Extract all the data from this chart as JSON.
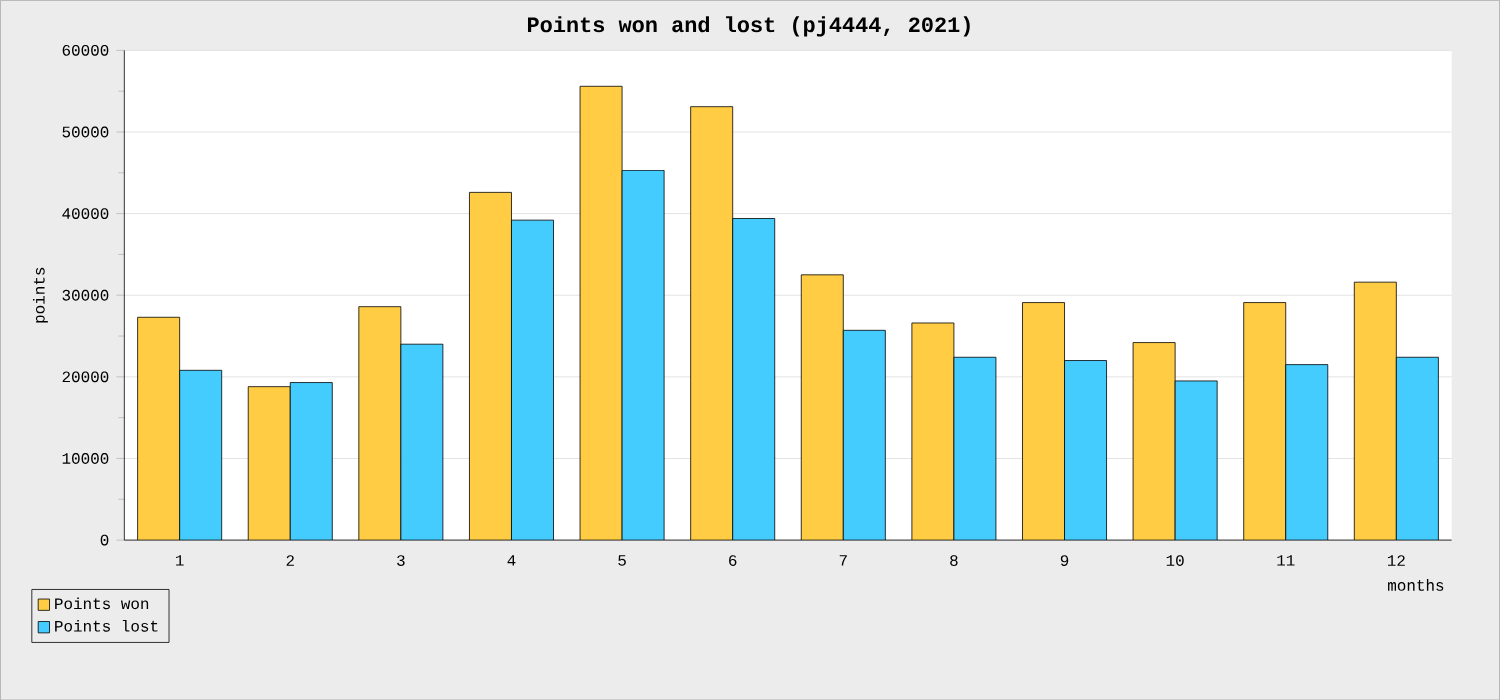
{
  "chart_data": {
    "type": "bar",
    "title": "Points won and lost (pj4444, 2021)",
    "xlabel": "months",
    "ylabel": "points",
    "categories": [
      "1",
      "2",
      "3",
      "4",
      "5",
      "6",
      "7",
      "8",
      "9",
      "10",
      "11",
      "12"
    ],
    "series": [
      {
        "name": "Points won",
        "color": "#ffcc44",
        "values": [
          27300,
          18800,
          28600,
          42600,
          55600,
          53100,
          32500,
          26600,
          29100,
          24200,
          29100,
          31600
        ]
      },
      {
        "name": "Points lost",
        "color": "#44ccff",
        "values": [
          20800,
          19300,
          24000,
          39200,
          45300,
          39400,
          25700,
          22400,
          22000,
          19500,
          21500,
          22400
        ]
      }
    ],
    "ylim": [
      0,
      60000
    ],
    "yticks": [
      0,
      10000,
      20000,
      30000,
      40000,
      50000,
      60000
    ],
    "grid": "y",
    "legend": "bottom left"
  }
}
